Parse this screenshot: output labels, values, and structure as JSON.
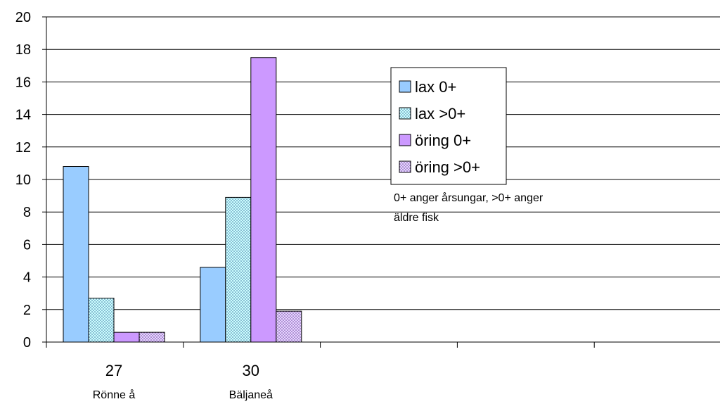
{
  "chart_data": {
    "type": "bar",
    "categories": [
      "27",
      "30",
      "",
      "",
      ""
    ],
    "category_sublabels": [
      "Rönne å",
      "Bäljaneå",
      "",
      "",
      ""
    ],
    "series": [
      {
        "name": "lax 0+",
        "values": [
          10.8,
          4.6,
          null,
          null,
          null
        ],
        "color": "#99ccff",
        "pattern": "solid"
      },
      {
        "name": "lax >0+",
        "values": [
          2.7,
          8.9,
          null,
          null,
          null
        ],
        "color": "#ccffff",
        "pattern": "dots"
      },
      {
        "name": "öring 0+",
        "values": [
          0.6,
          17.5,
          null,
          null,
          null
        ],
        "color": "#cc99ff",
        "pattern": "solid"
      },
      {
        "name": "öring >0+",
        "values": [
          0.6,
          1.9,
          null,
          null,
          null
        ],
        "color": "#cc99ff",
        "pattern": "dots"
      }
    ],
    "ylim": [
      0,
      20
    ],
    "yticks": [
      "0",
      "2",
      "4",
      "6",
      "8",
      "10",
      "12",
      "14",
      "16",
      "18",
      "20"
    ],
    "grid": true,
    "legend_position": "top-right",
    "annotation": "0+ anger årsungar, >0+ anger äldre fisk",
    "annotation_lines": [
      "0+ anger årsungar, >0+ anger",
      "äldre fisk"
    ]
  }
}
